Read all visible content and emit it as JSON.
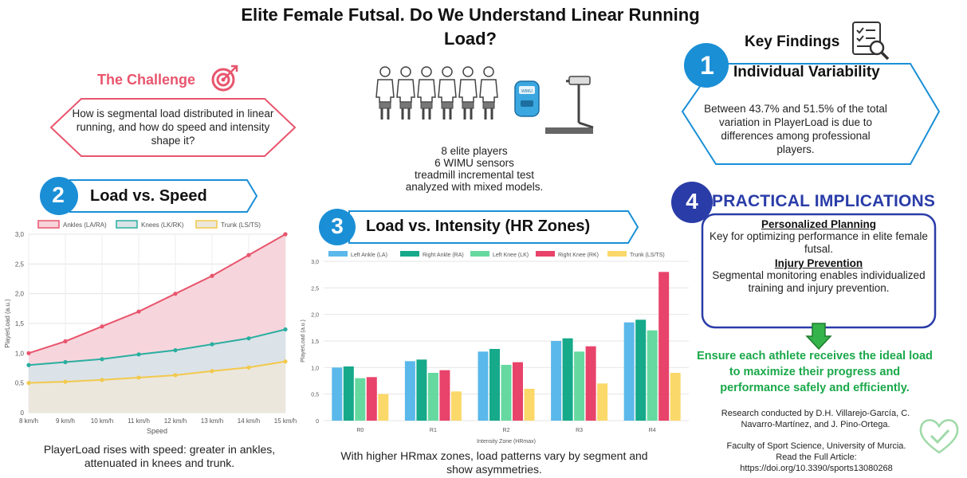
{
  "title": "Elite Female Futsal. Do We Understand Linear Running Load?",
  "challenge": {
    "heading": "The Challenge",
    "question": "How is segmental load distributed in linear running, and how do speed and intensity shape it?"
  },
  "study": {
    "players": "8 elite players",
    "sensors": "6 WIMU sensors",
    "test": "treadmill incremental test",
    "analysis": "analyzed with mixed models.",
    "device_label": "WIMU"
  },
  "section2": {
    "number": "2",
    "heading": "Load vs. Speed",
    "caption": "PlayerLoad rises with speed: greater in ankles, attenuated in knees and trunk."
  },
  "section3": {
    "number": "3",
    "heading": "Load vs. Intensity (HR Zones)",
    "caption": "With higher HRmax zones, load patterns vary by segment and show asymmetries."
  },
  "key_findings": {
    "heading": "Key Findings",
    "number": "1",
    "subheading": "Individual Variability",
    "body": "Between 43.7% and 51.5% of the total variation in PlayerLoad is due to differences among professional players."
  },
  "practical": {
    "number": "4",
    "heading": "PRACTICAL IMPLICATIONS",
    "planning_head": "Personalized Planning",
    "planning_body": "Key for optimizing performance in elite female futsal.",
    "injury_head": "Injury Prevention",
    "injury_body": "Segmental monitoring enables individualized training and injury prevention.",
    "ensure": "Ensure each athlete receives the ideal load to maximize their progress and performance safely and efficiently."
  },
  "credits": {
    "authors": "Research conducted by D.H. Villarejo-García, C. Navarro-Martínez, and J. Pino-Ortega.",
    "affiliation": "Faculty of Sport Science, University of Murcia.",
    "article": "Read the Full Article:  https://doi.org/10.3390/sports13080268"
  },
  "colors": {
    "ankles": "#e8556d",
    "knees": "#2aaea0",
    "trunk": "#f2c94c",
    "left_ankle": "#5bb8ea",
    "right_ankle": "#16a98a",
    "left_knee": "#66d9a0",
    "right_knee": "#e8436a",
    "trunk_bar": "#fbd86a",
    "banner_blue": "#1a8fd6",
    "practical_navy": "#2a3ca8",
    "ensure_green": "#1aa84a"
  },
  "chart_data": [
    {
      "type": "area",
      "categories": [
        "8 km/h",
        "9 km/h",
        "10 km/h",
        "11 km/h",
        "12 km/h",
        "13 km/h",
        "14 km/h",
        "15 km/h"
      ],
      "series": [
        {
          "name": "Ankles (LA/RA)",
          "values": [
            1.0,
            1.2,
            1.45,
            1.7,
            2.0,
            2.3,
            2.65,
            3.0
          ]
        },
        {
          "name": "Knees (LK/RK)",
          "values": [
            0.8,
            0.85,
            0.9,
            0.98,
            1.05,
            1.15,
            1.25,
            1.4
          ]
        },
        {
          "name": "Trunk (LS/TS)",
          "values": [
            0.5,
            0.52,
            0.55,
            0.59,
            0.63,
            0.7,
            0.76,
            0.86
          ]
        }
      ],
      "xlabel": "Speed",
      "ylabel": "PlayerLoad (a.u.)",
      "ylim": [
        0,
        3
      ],
      "yticks": [
        "0",
        "0,5",
        "1,0",
        "1,5",
        "2,0",
        "2,5",
        "3,0"
      ],
      "legend": "top",
      "grid": true
    },
    {
      "type": "bar",
      "categories": [
        "R0",
        "R1",
        "R2",
        "R3",
        "R4"
      ],
      "series": [
        {
          "name": "Left Ankle (LA)",
          "values": [
            1.0,
            1.12,
            1.3,
            1.5,
            1.85
          ]
        },
        {
          "name": "Right Ankle (RA)",
          "values": [
            1.02,
            1.15,
            1.35,
            1.55,
            1.9
          ]
        },
        {
          "name": "Left Knee (LK)",
          "values": [
            0.8,
            0.9,
            1.05,
            1.3,
            1.7
          ]
        },
        {
          "name": "Right Knee (RK)",
          "values": [
            0.82,
            0.95,
            1.1,
            1.4,
            2.8
          ]
        },
        {
          "name": "Trunk (LS/TS)",
          "values": [
            0.5,
            0.55,
            0.6,
            0.7,
            0.9
          ]
        }
      ],
      "xlabel": "Intensity Zone (HRmax)",
      "ylabel": "PlayerLoad (a.u.)",
      "ylim": [
        0,
        3
      ],
      "yticks": [
        "0",
        "0,5",
        "1,0",
        "1,5",
        "2,0",
        "2,5",
        "3,0"
      ],
      "legend": "top",
      "grid": true
    }
  ]
}
